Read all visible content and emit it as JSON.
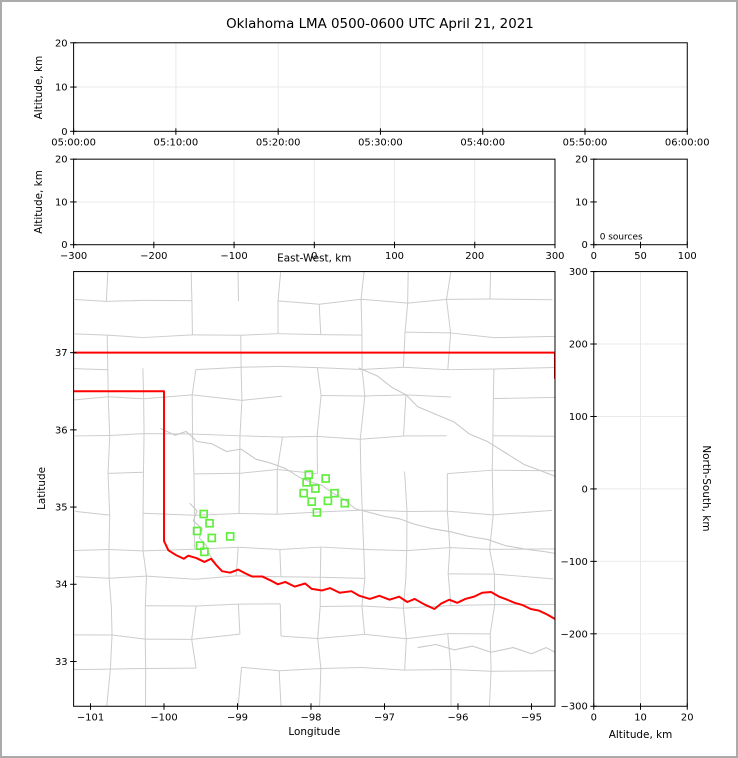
{
  "figure": {
    "title": "Oklahoma LMA 0500-0600 UTC April 21, 2021"
  },
  "colors": {
    "station": "#5fee3c",
    "state_border": "#ff0000",
    "county_line": "#cccccc",
    "river_line": "#c9c9c9",
    "grid_line": "#e9e9e9",
    "spine": "#000000",
    "background": "#ffffff",
    "figure_frame": "#ababab"
  },
  "chart_data": [
    {
      "id": "time_height",
      "type": "scatter",
      "xlabel": "",
      "ylabel": "Altitude, km",
      "xlim": [
        0,
        3600
      ],
      "ylim": [
        0,
        20
      ],
      "x_tick_values": [
        0,
        600,
        1200,
        1800,
        2400,
        3000,
        3600
      ],
      "x_tick_labels": [
        "05:00:00",
        "05:10:00",
        "05:20:00",
        "05:30:00",
        "05:40:00",
        "05:50:00",
        "06:00:00"
      ],
      "y_tick_values": [
        0,
        10,
        20
      ],
      "y_tick_labels": [
        "0",
        "10",
        "20"
      ],
      "grid_x": [
        600,
        1200,
        1800,
        2400,
        3000
      ],
      "grid_y": [
        10
      ],
      "points": []
    },
    {
      "id": "ew_height",
      "type": "scatter",
      "xlabel": "East-West, km",
      "ylabel": "Altitude, km",
      "xlim": [
        -300,
        300
      ],
      "ylim": [
        0,
        20
      ],
      "x_tick_values": [
        -300,
        -200,
        -100,
        0,
        100,
        200,
        300
      ],
      "x_tick_labels": [
        "−300",
        "−200",
        "−100",
        "0",
        "100",
        "200",
        "300"
      ],
      "y_tick_values": [
        0,
        10,
        20
      ],
      "y_tick_labels": [
        "0",
        "10",
        "20"
      ],
      "grid_x": [
        -200,
        -100,
        0,
        100,
        200
      ],
      "grid_y": [
        10
      ],
      "points": []
    },
    {
      "id": "altitude_histogram",
      "type": "histogram",
      "xlabel": "",
      "ylabel": "",
      "xlim": [
        0,
        100
      ],
      "ylim": [
        0,
        20
      ],
      "x_tick_values": [
        0,
        50,
        100
      ],
      "x_tick_labels": [
        "0",
        "50",
        "100"
      ],
      "y_tick_values": [
        0,
        10,
        20
      ],
      "y_tick_labels": [
        "0",
        "10",
        "20"
      ],
      "grid_x": [],
      "grid_y": [],
      "annotation": "0 sources",
      "points": []
    },
    {
      "id": "plan_view_map",
      "type": "map",
      "xlabel": "Longitude",
      "ylabel": "Latitude",
      "xlim": [
        -101.23,
        -94.68
      ],
      "ylim": [
        32.42,
        38.05
      ],
      "x_tick_values": [
        -101,
        -100,
        -99,
        -98,
        -97,
        -96,
        -95
      ],
      "x_tick_labels": [
        "−101",
        "−100",
        "−99",
        "−98",
        "−97",
        "−96",
        "−95"
      ],
      "y_tick_values": [
        33,
        34,
        35,
        36,
        37
      ],
      "y_tick_labels": [
        "33",
        "34",
        "35",
        "36",
        "37"
      ],
      "grid_x": [],
      "grid_y": [],
      "points": [],
      "stations": [
        [
          -99.46,
          34.91
        ],
        [
          -99.38,
          34.79
        ],
        [
          -99.55,
          34.69
        ],
        [
          -99.35,
          34.6
        ],
        [
          -99.1,
          34.62
        ],
        [
          -99.51,
          34.5
        ],
        [
          -99.45,
          34.42
        ],
        [
          -98.03,
          35.42
        ],
        [
          -97.8,
          35.37
        ],
        [
          -98.06,
          35.32
        ],
        [
          -97.94,
          35.24
        ],
        [
          -98.1,
          35.18
        ],
        [
          -97.68,
          35.18
        ],
        [
          -97.99,
          35.07
        ],
        [
          -97.77,
          35.08
        ],
        [
          -97.54,
          35.05
        ],
        [
          -97.92,
          34.93
        ]
      ],
      "state_border": [
        [
          [
            -101.23,
            37.0
          ],
          [
            -94.68,
            37.0
          ]
        ],
        [
          [
            -94.68,
            37.0
          ],
          [
            -94.68,
            36.67
          ]
        ],
        [
          [
            -101.23,
            36.5
          ],
          [
            -100.0,
            36.5
          ],
          [
            -100.0,
            34.56
          ],
          [
            -99.94,
            34.44
          ],
          [
            -99.84,
            34.38
          ],
          [
            -99.73,
            34.33
          ],
          [
            -99.67,
            34.37
          ],
          [
            -99.56,
            34.34
          ],
          [
            -99.45,
            34.29
          ],
          [
            -99.36,
            34.33
          ],
          [
            -99.29,
            34.25
          ],
          [
            -99.21,
            34.17
          ],
          [
            -99.1,
            34.15
          ],
          [
            -98.99,
            34.19
          ],
          [
            -98.89,
            34.14
          ],
          [
            -98.8,
            34.1
          ],
          [
            -98.66,
            34.1
          ],
          [
            -98.55,
            34.05
          ],
          [
            -98.45,
            34.0
          ],
          [
            -98.35,
            34.03
          ],
          [
            -98.22,
            33.97
          ],
          [
            -98.08,
            34.01
          ],
          [
            -97.99,
            33.94
          ],
          [
            -97.85,
            33.92
          ],
          [
            -97.74,
            33.95
          ],
          [
            -97.61,
            33.89
          ],
          [
            -97.45,
            33.91
          ],
          [
            -97.34,
            33.85
          ],
          [
            -97.2,
            33.81
          ],
          [
            -97.07,
            33.85
          ],
          [
            -96.93,
            33.8
          ],
          [
            -96.8,
            33.84
          ],
          [
            -96.69,
            33.77
          ],
          [
            -96.59,
            33.81
          ],
          [
            -96.46,
            33.74
          ],
          [
            -96.32,
            33.68
          ],
          [
            -96.23,
            33.75
          ],
          [
            -96.12,
            33.8
          ],
          [
            -96.01,
            33.76
          ],
          [
            -95.9,
            33.81
          ],
          [
            -95.78,
            33.84
          ],
          [
            -95.67,
            33.89
          ],
          [
            -95.55,
            33.9
          ],
          [
            -95.44,
            33.84
          ],
          [
            -95.33,
            33.8
          ],
          [
            -95.23,
            33.76
          ],
          [
            -95.12,
            33.73
          ],
          [
            -95.01,
            33.68
          ],
          [
            -94.9,
            33.66
          ],
          [
            -94.79,
            33.61
          ],
          [
            -94.68,
            33.55
          ]
        ]
      ],
      "rivers": [
        [
          [
            -100.05,
            36.02
          ],
          [
            -99.85,
            35.93
          ],
          [
            -99.7,
            35.98
          ],
          [
            -99.55,
            35.85
          ],
          [
            -99.35,
            35.82
          ],
          [
            -99.15,
            35.72
          ],
          [
            -98.95,
            35.75
          ],
          [
            -98.75,
            35.62
          ],
          [
            -98.55,
            35.57
          ],
          [
            -98.35,
            35.5
          ],
          [
            -98.15,
            35.38
          ],
          [
            -98.02,
            35.33
          ],
          [
            -97.85,
            35.28
          ],
          [
            -97.7,
            35.18
          ],
          [
            -97.55,
            35.1
          ],
          [
            -97.4,
            34.98
          ],
          [
            -97.2,
            34.93
          ],
          [
            -97.0,
            34.88
          ],
          [
            -96.8,
            34.85
          ],
          [
            -96.6,
            34.78
          ],
          [
            -96.35,
            34.72
          ],
          [
            -96.1,
            34.68
          ],
          [
            -95.85,
            34.62
          ],
          [
            -95.6,
            34.58
          ],
          [
            -95.35,
            34.5
          ],
          [
            -95.05,
            34.45
          ],
          [
            -94.8,
            34.42
          ],
          [
            -94.68,
            34.4
          ]
        ],
        [
          [
            -97.35,
            36.8
          ],
          [
            -97.1,
            36.7
          ],
          [
            -96.9,
            36.55
          ],
          [
            -96.7,
            36.45
          ],
          [
            -96.55,
            36.3
          ],
          [
            -96.3,
            36.2
          ],
          [
            -96.05,
            36.1
          ],
          [
            -95.85,
            35.95
          ],
          [
            -95.6,
            35.85
          ],
          [
            -95.35,
            35.7
          ],
          [
            -95.1,
            35.55
          ],
          [
            -94.9,
            35.48
          ],
          [
            -94.68,
            35.4
          ]
        ],
        [
          [
            -96.55,
            33.18
          ],
          [
            -96.3,
            33.22
          ],
          [
            -96.05,
            33.15
          ],
          [
            -95.8,
            33.2
          ],
          [
            -95.55,
            33.12
          ],
          [
            -95.25,
            33.18
          ],
          [
            -95.0,
            33.1
          ],
          [
            -94.8,
            33.18
          ],
          [
            -94.68,
            33.12
          ]
        ],
        [
          [
            -99.65,
            35.05
          ],
          [
            -99.55,
            34.95
          ],
          [
            -99.6,
            34.82
          ],
          [
            -99.48,
            34.72
          ],
          [
            -99.52,
            34.6
          ],
          [
            -99.42,
            34.5
          ],
          [
            -99.38,
            34.38
          ],
          [
            -99.3,
            34.28
          ]
        ]
      ]
    },
    {
      "id": "ns_height",
      "type": "scatter",
      "xlabel": "Altitude, km",
      "ylabel": "North-South, km",
      "xlim": [
        0,
        20
      ],
      "ylim": [
        -300,
        300
      ],
      "x_tick_values": [
        0,
        10,
        20
      ],
      "x_tick_labels": [
        "0",
        "10",
        "20"
      ],
      "y_tick_values": [
        -300,
        -200,
        -100,
        0,
        100,
        200,
        300
      ],
      "y_tick_labels": [
        "−300",
        "−200",
        "−100",
        "0",
        "100",
        "200",
        "300"
      ],
      "grid_x": [
        10
      ],
      "grid_y": [
        -200,
        -100,
        0,
        100,
        200
      ],
      "points": []
    }
  ]
}
